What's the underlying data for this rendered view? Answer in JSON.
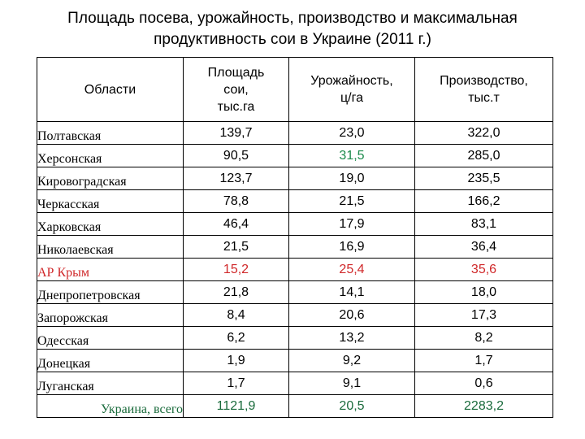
{
  "title_line1": "Площадь посева, урожайность, производство и максимальная",
  "title_line2": "продуктивность сои в Украине (2011 г.)",
  "headers": {
    "region": "Области",
    "area": [
      "Площадь",
      "сои,",
      "тыс.га"
    ],
    "yield": [
      "Урожайность,",
      "ц/га"
    ],
    "production": [
      "Производство,",
      "тыс.т"
    ]
  },
  "rows": [
    {
      "region": "Полтавская",
      "area": "139,7",
      "yield": "23,0",
      "production": "322,0"
    },
    {
      "region": "Херсонская",
      "area": "90,5",
      "yield": "31,5",
      "production": "285,0"
    },
    {
      "region": "Кировоградская",
      "area": "123,7",
      "yield": "19,0",
      "production": "235,5"
    },
    {
      "region": "Черкасская",
      "area": "78,8",
      "yield": "21,5",
      "production": "166,2"
    },
    {
      "region": "Харковская",
      "area": "46,4",
      "yield": "17,9",
      "production": "83,1"
    },
    {
      "region": "Николаевская",
      "area": "21,5",
      "yield": "16,9",
      "production": "36,4"
    },
    {
      "region": "АР Крым",
      "area": "15,2",
      "yield": "25,4",
      "production": "35,6"
    },
    {
      "region": "Днепропетровская",
      "area": "21,8",
      "yield": "14,1",
      "production": "18,0"
    },
    {
      "region": "Запорожская",
      "area": "8,4",
      "yield": "20,6",
      "production": "17,3"
    },
    {
      "region": "Одесская",
      "area": "6,2",
      "yield": "13,2",
      "production": "8,2"
    },
    {
      "region": "Донецкая",
      "area": "1,9",
      "yield": "9,2",
      "production": "1,7"
    },
    {
      "region": "Луганская",
      "area": "1,7",
      "yield": "9,1",
      "production": "0,6"
    },
    {
      "region": "Украина, всего",
      "area": "1121,9",
      "yield": "20,5",
      "production": "2283,2"
    }
  ],
  "colors": {
    "highlight_green": "#1a8a4a",
    "highlight_red": "#d0282a",
    "total_green": "#1a6b3c"
  }
}
